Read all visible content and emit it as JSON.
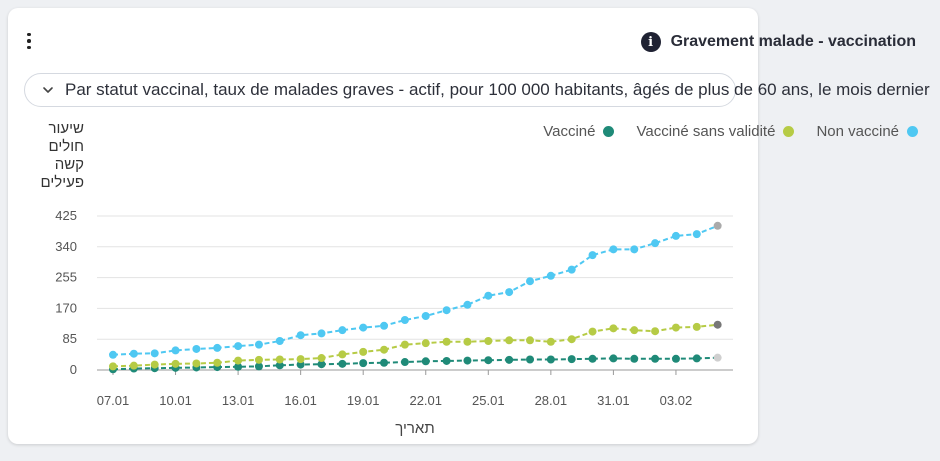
{
  "header": {
    "title": "Gravement malade - vaccination"
  },
  "filter": {
    "selected": "Par statut vaccinal, taux de malades graves - actif, pour 100 000 habitants, âgés de plus de 60 ans, le mois dernier"
  },
  "chart_data": {
    "type": "line",
    "title": "Gravement malade - vaccination",
    "ylabel_lines": [
      "שיעור",
      "חולים",
      "קשה",
      "פעילים"
    ],
    "xlabel": "תאריך",
    "yticks": [
      0,
      85,
      170,
      255,
      340,
      425
    ],
    "ylim": [
      0,
      425
    ],
    "x": [
      "07.01",
      "08.01",
      "09.01",
      "10.01",
      "11.01",
      "12.01",
      "13.01",
      "14.01",
      "15.01",
      "16.01",
      "17.01",
      "18.01",
      "19.01",
      "20.01",
      "21.01",
      "22.01",
      "23.01",
      "24.01",
      "25.01",
      "26.01",
      "27.01",
      "28.01",
      "29.01",
      "30.01",
      "31.01",
      "01.02",
      "02.02",
      "03.02",
      "04.02",
      "05.02"
    ],
    "xticks": [
      "07.01",
      "10.01",
      "13.01",
      "16.01",
      "19.01",
      "22.01",
      "25.01",
      "28.01",
      "31.01",
      "03.02"
    ],
    "legend_position": "top-right",
    "grid": true,
    "series": [
      {
        "name": "Non vacciné",
        "color": "#4fc8f2",
        "values": [
          42,
          45,
          46,
          54,
          58,
          61,
          66,
          70,
          80,
          96,
          101,
          110,
          117,
          122,
          138,
          149,
          165,
          180,
          205,
          215,
          245,
          260,
          277,
          317,
          333,
          333,
          350,
          370,
          375,
          398
        ]
      },
      {
        "name": "Vacciné sans validité",
        "color": "#b6cb45",
        "values": [
          10,
          12,
          15,
          17,
          18,
          20,
          26,
          28,
          29,
          30,
          33,
          43,
          50,
          56,
          70,
          74,
          78,
          78,
          80,
          82,
          82,
          78,
          85,
          106,
          115,
          110,
          107,
          117,
          119,
          125
        ]
      },
      {
        "name": "Vacciné",
        "color": "#1f8a78",
        "values": [
          2,
          4,
          5,
          6,
          7,
          8,
          9,
          10,
          13,
          15,
          16,
          17,
          19,
          20,
          22,
          24,
          25,
          26,
          27,
          28,
          29,
          29,
          30,
          31,
          32,
          31,
          31,
          31,
          32,
          34
        ]
      }
    ],
    "latest_point_color": "#aaaaaa"
  }
}
